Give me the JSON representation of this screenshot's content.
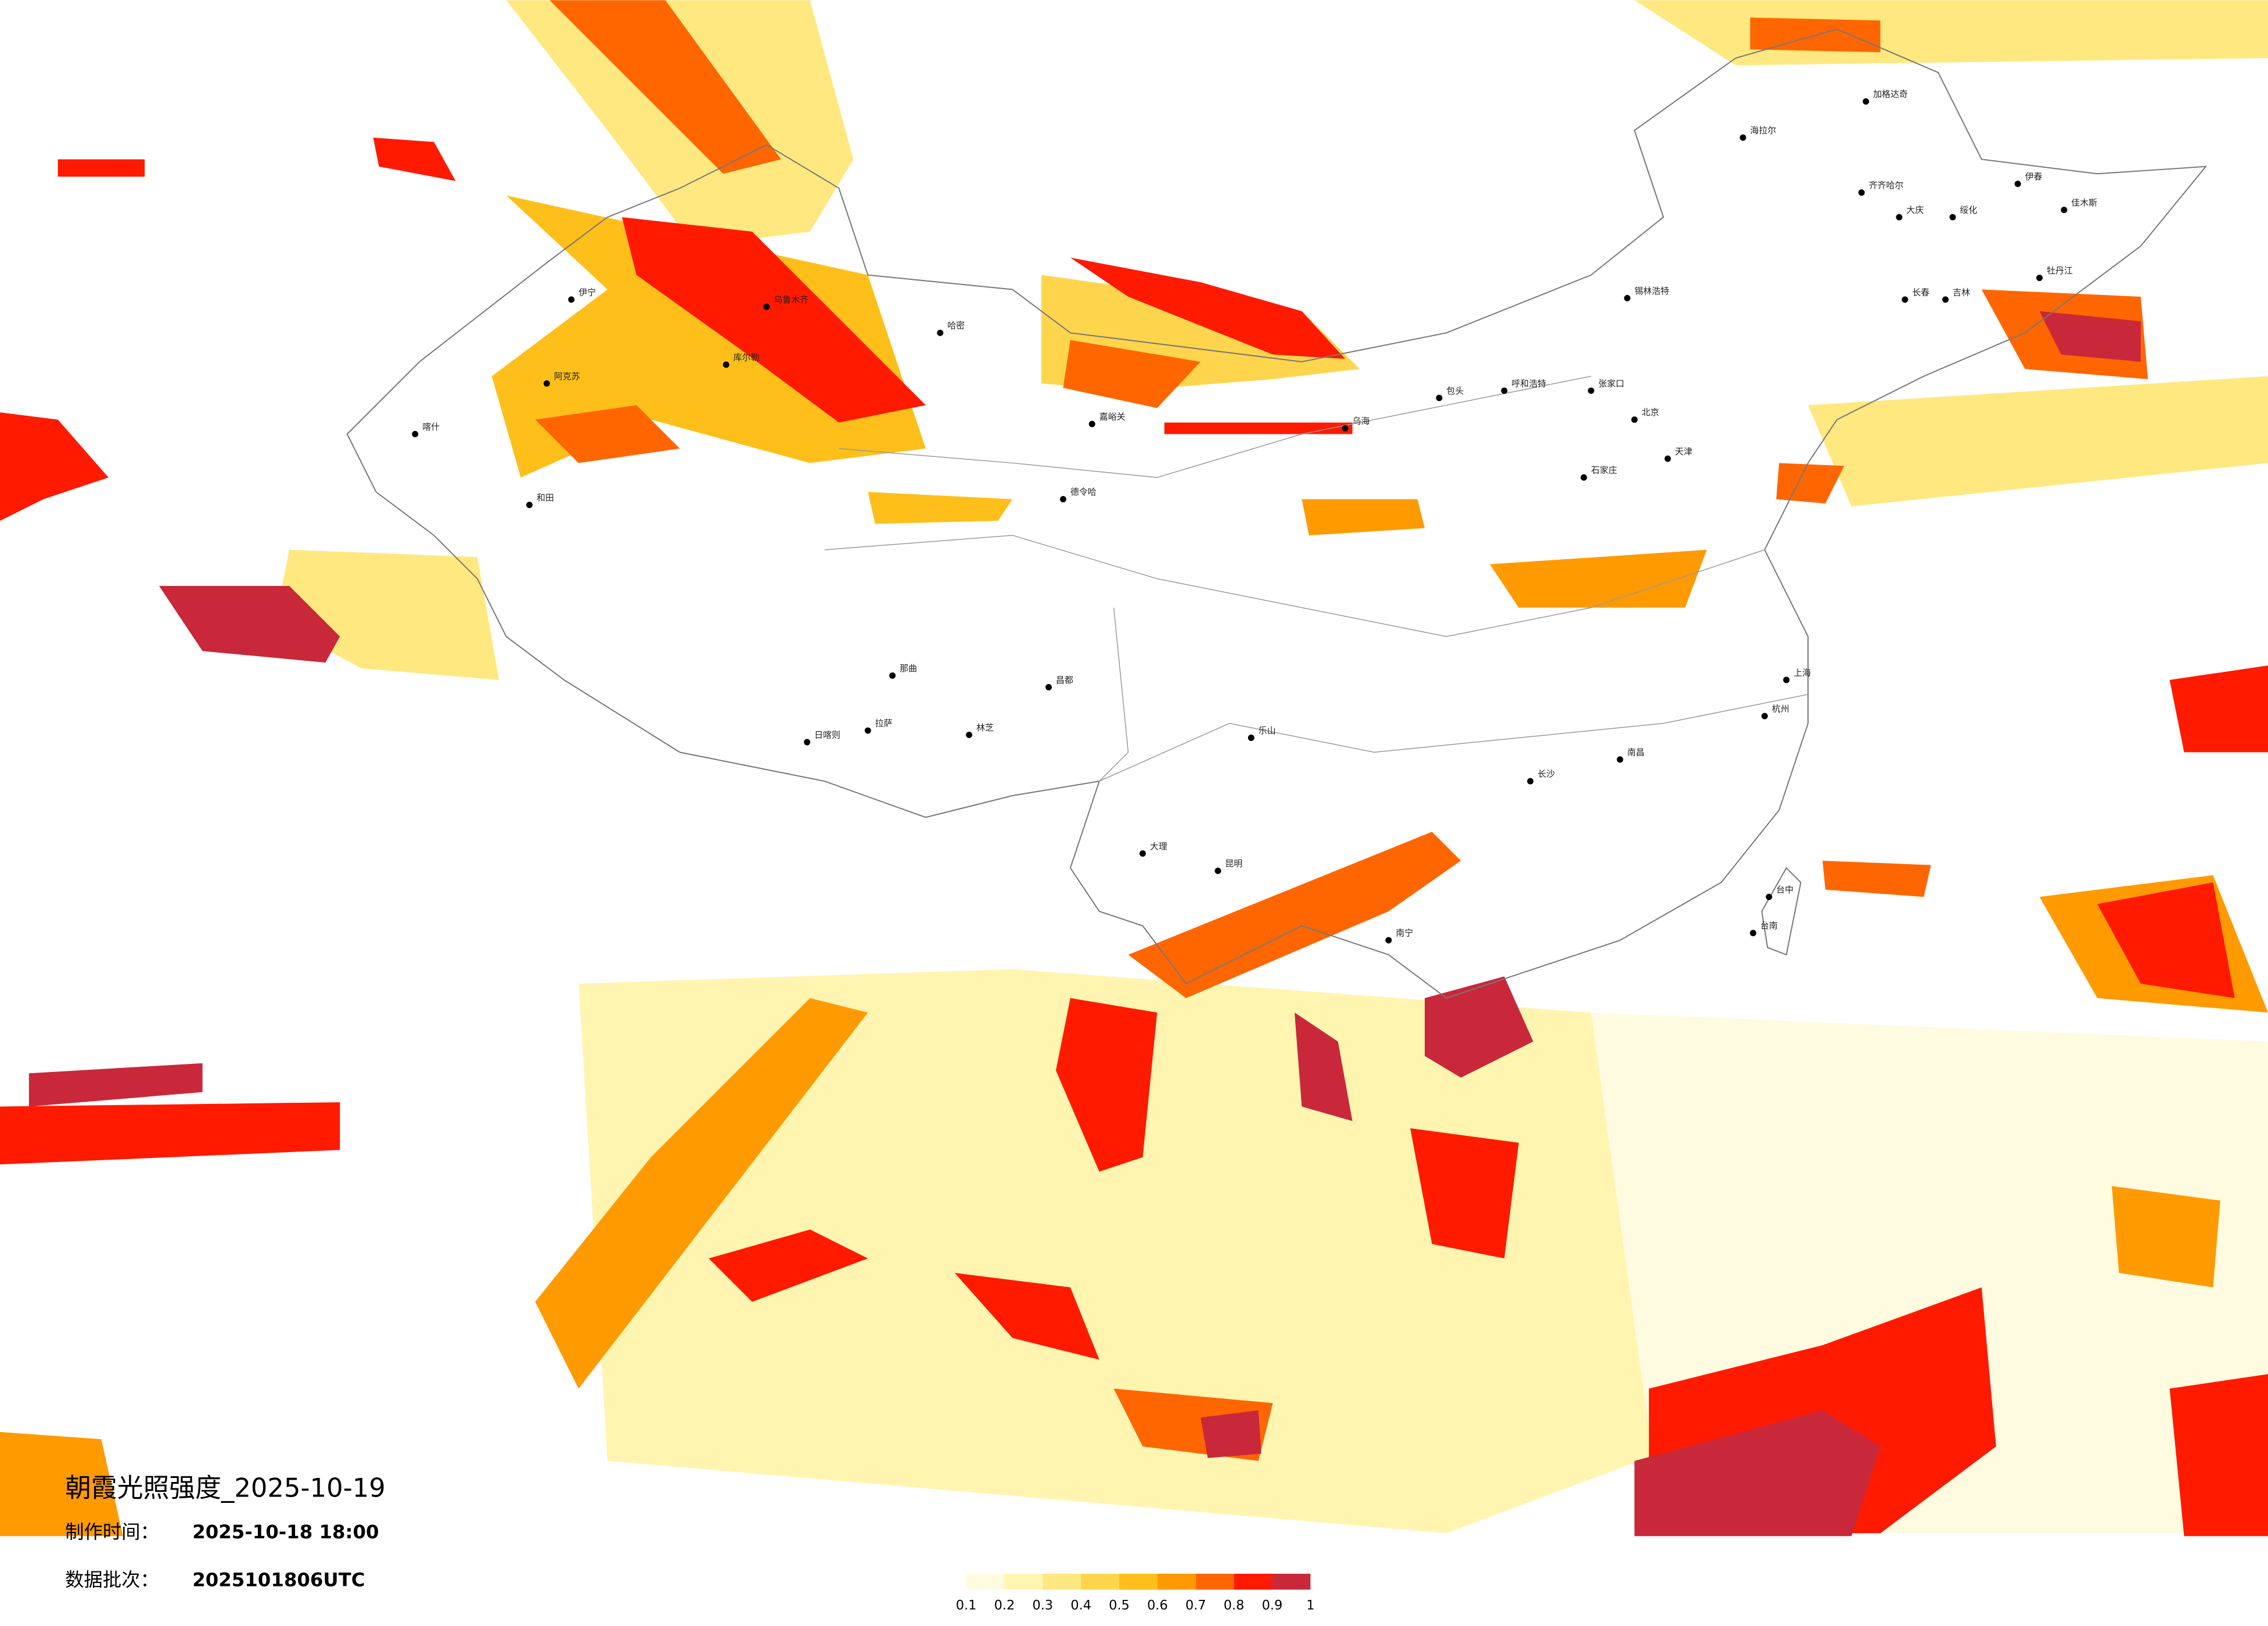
{
  "title": "朝霞光照强度_2025-10-19",
  "made_label": "制作时间：",
  "made_value": "2025-10-18 18:00",
  "batch_label": "数据批次：",
  "batch_value": "2025101806UTC",
  "legend": {
    "ticks": [
      0.1,
      0.2,
      0.3,
      0.4,
      0.5,
      0.6,
      0.7,
      0.8,
      0.9,
      1
    ],
    "colors": [
      "#fffbe0",
      "#fff5b0",
      "#ffe880",
      "#ffd54d",
      "#ffbf1a",
      "#ff9a00",
      "#ff6600",
      "#ff1a00",
      "#c8283a"
    ]
  },
  "cities": [
    "海拉尔",
    "加格达奇",
    "齐齐哈尔",
    "大庆",
    "绥化",
    "伊春",
    "佳木斯",
    "牡丹江",
    "长春",
    "吉林",
    "锡林浩特",
    "呼和浩特",
    "包头",
    "张家口",
    "北京",
    "天津",
    "石家庄",
    "乌鲁木齐",
    "伊宁",
    "阿克苏",
    "和田",
    "喀什",
    "哈密",
    "库尔勒",
    "日喀则",
    "拉萨",
    "林芝",
    "那曲",
    "昌都",
    "嘉峪关",
    "德令哈",
    "乐山",
    "昆明",
    "大理",
    "南宁",
    "长沙",
    "南昌",
    "上海",
    "杭州",
    "台中",
    "台南",
    "乌海"
  ]
}
